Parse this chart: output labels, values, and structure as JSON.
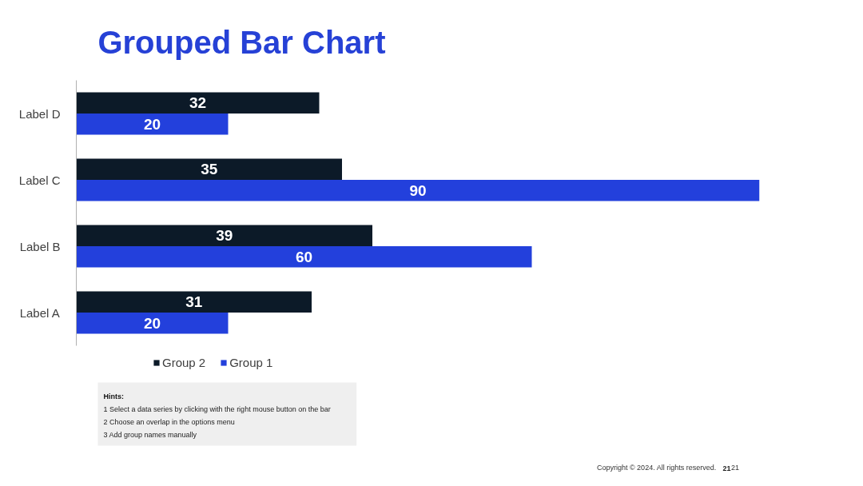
{
  "chart_data": {
    "type": "bar",
    "orientation": "horizontal",
    "title": "Grouped Bar Chart",
    "categories": [
      "Label D",
      "Label C",
      "Label B",
      "Label A"
    ],
    "series": [
      {
        "name": "Group 2",
        "color": "#0c1a28",
        "values": [
          32,
          35,
          39,
          31
        ]
      },
      {
        "name": "Group 1",
        "color": "#2340dc",
        "values": [
          20,
          90,
          60,
          20
        ]
      }
    ],
    "tick_labels": "y",
    "data_labels": true,
    "legend": "bottom",
    "annotations": [
      "Hints:",
      "1  Select a data series by clicking with the right mouse button on the bar",
      "2  Choose an overlap in the options menu",
      "3  Add group names manually",
      "Copyright © 2024. All rights reserved.",
      "21",
      "21"
    ]
  }
}
